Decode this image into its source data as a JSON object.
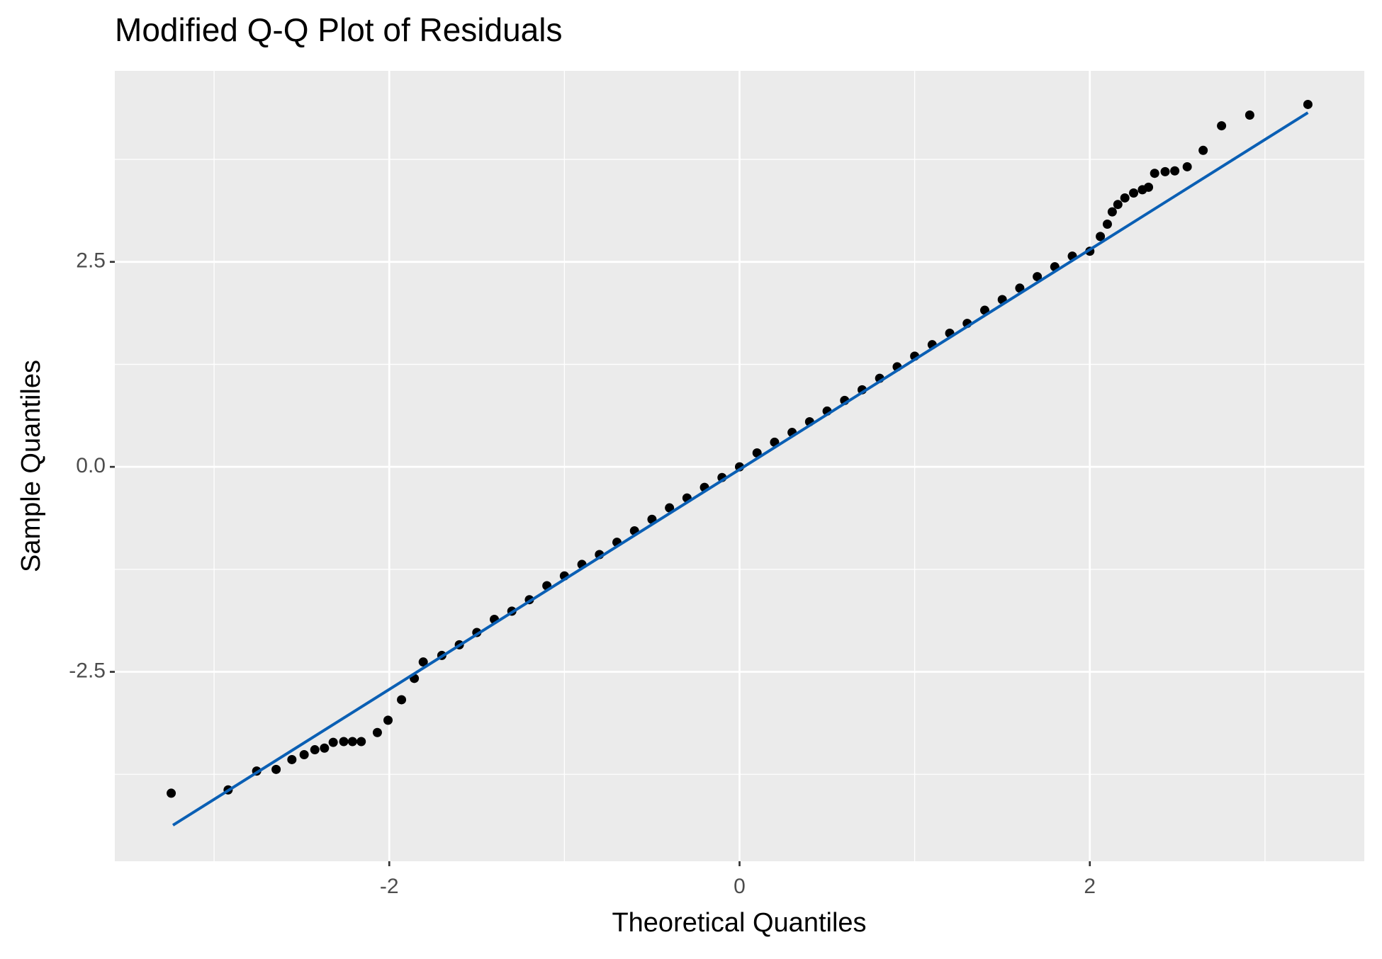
{
  "chart_data": {
    "type": "scatter",
    "title": "Modified Q-Q Plot of Residuals",
    "x_label": "Theoretical Quantiles",
    "y_label": "Sample Quantiles",
    "xlim": [
      -3.567,
      3.567
    ],
    "ylim": [
      -4.81,
      4.83
    ],
    "xticks": [
      -2,
      0,
      2
    ],
    "yticks": [
      -2.5,
      {
        "value": 0,
        "label": "0.0"
      },
      2.5
    ],
    "x_minor_grid": [
      -3,
      -1,
      1,
      3
    ],
    "y_minor_grid": [
      -3.75,
      -1.25,
      1.25,
      3.75
    ],
    "grid": true,
    "series": [
      {
        "name": "Residuals",
        "color": "#000000",
        "x": [
          -3.245,
          -2.92,
          -2.757,
          -2.646,
          -2.556,
          -2.486,
          -2.425,
          -2.37,
          -2.32,
          -2.26,
          -2.21,
          -2.16,
          -2.068,
          -2.007,
          -1.93,
          -1.857,
          -1.806,
          -1.7,
          -1.6,
          -1.5,
          -1.4,
          -1.3,
          -1.2,
          -1.1,
          -1.0,
          -0.9,
          -0.8,
          -0.7,
          -0.6,
          -0.5,
          -0.4,
          -0.3,
          -0.2,
          -0.1,
          0.0,
          0.1,
          0.2,
          0.3,
          0.4,
          0.5,
          0.6,
          0.7,
          0.8,
          0.9,
          1.0,
          1.1,
          1.2,
          1.3,
          1.4,
          1.5,
          1.6,
          1.7,
          1.8,
          1.9,
          2.0,
          2.06,
          2.1,
          2.128,
          2.16,
          2.2,
          2.25,
          2.3,
          2.335,
          2.37,
          2.43,
          2.485,
          2.556,
          2.647,
          2.752,
          2.913,
          3.245
        ],
        "values": [
          -3.98,
          -3.94,
          -3.71,
          -3.69,
          -3.57,
          -3.51,
          -3.45,
          -3.43,
          -3.36,
          -3.35,
          -3.35,
          -3.35,
          -3.24,
          -3.09,
          -2.84,
          -2.58,
          -2.38,
          -2.3,
          -2.17,
          -2.02,
          -1.86,
          -1.76,
          -1.62,
          -1.45,
          -1.33,
          -1.19,
          -1.07,
          -0.92,
          -0.78,
          -0.64,
          -0.5,
          -0.38,
          -0.25,
          -0.13,
          0.0,
          0.17,
          0.3,
          0.42,
          0.55,
          0.68,
          0.81,
          0.94,
          1.08,
          1.22,
          1.35,
          1.49,
          1.63,
          1.75,
          1.91,
          2.04,
          2.18,
          2.32,
          2.44,
          2.57,
          2.63,
          2.81,
          2.96,
          3.11,
          3.2,
          3.28,
          3.34,
          3.38,
          3.41,
          3.58,
          3.6,
          3.61,
          3.66,
          3.86,
          4.16,
          4.29,
          4.42
        ]
      }
    ],
    "reference_line": {
      "color": "#0a5fb4",
      "x": [
        -3.235,
        3.245
      ],
      "values": [
        -4.37,
        4.32
      ]
    }
  }
}
